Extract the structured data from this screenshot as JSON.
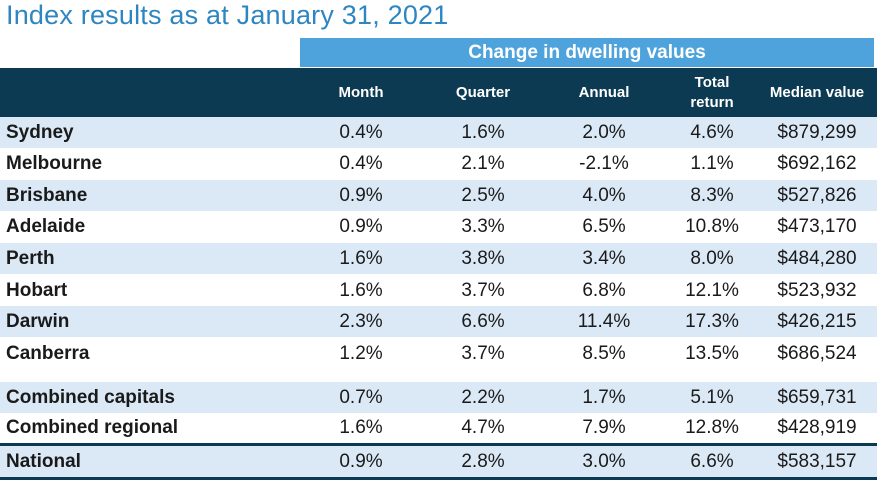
{
  "title": "Index results as at January 31, 2021",
  "band_label": "Change in dwelling values",
  "headers": {
    "month": "Month",
    "quarter": "Quarter",
    "annual": "Annual",
    "total_return_line1": "Total",
    "total_return_line2": "return",
    "median": "Median value"
  },
  "rows": [
    {
      "name": "Sydney",
      "month": "0.4%",
      "quarter": "1.6%",
      "annual": "2.0%",
      "total": "4.6%",
      "median": "$879,299"
    },
    {
      "name": "Melbourne",
      "month": "0.4%",
      "quarter": "2.1%",
      "annual": "-2.1%",
      "total": "1.1%",
      "median": "$692,162"
    },
    {
      "name": "Brisbane",
      "month": "0.9%",
      "quarter": "2.5%",
      "annual": "4.0%",
      "total": "8.3%",
      "median": "$527,826"
    },
    {
      "name": "Adelaide",
      "month": "0.9%",
      "quarter": "3.3%",
      "annual": "6.5%",
      "total": "10.8%",
      "median": "$473,170"
    },
    {
      "name": "Perth",
      "month": "1.6%",
      "quarter": "3.8%",
      "annual": "3.4%",
      "total": "8.0%",
      "median": "$484,280"
    },
    {
      "name": "Hobart",
      "month": "1.6%",
      "quarter": "3.7%",
      "annual": "6.8%",
      "total": "12.1%",
      "median": "$523,932"
    },
    {
      "name": "Darwin",
      "month": "2.3%",
      "quarter": "6.6%",
      "annual": "11.4%",
      "total": "17.3%",
      "median": "$426,215"
    },
    {
      "name": "Canberra",
      "month": "1.2%",
      "quarter": "3.7%",
      "annual": "8.5%",
      "total": "13.5%",
      "median": "$686,524"
    },
    {
      "name": "Combined capitals",
      "month": "0.7%",
      "quarter": "2.2%",
      "annual": "1.7%",
      "total": "5.1%",
      "median": "$659,731"
    },
    {
      "name": "Combined regional",
      "month": "1.6%",
      "quarter": "4.7%",
      "annual": "7.9%",
      "total": "12.8%",
      "median": "$428,919"
    },
    {
      "name": "National",
      "month": "0.9%",
      "quarter": "2.8%",
      "annual": "3.0%",
      "total": "6.6%",
      "median": "$583,157"
    }
  ],
  "colors": {
    "title": "#2e86c1",
    "band": "#4fa3dd",
    "header": "#0b3a52",
    "row_shade": "#dbe9f7"
  }
}
